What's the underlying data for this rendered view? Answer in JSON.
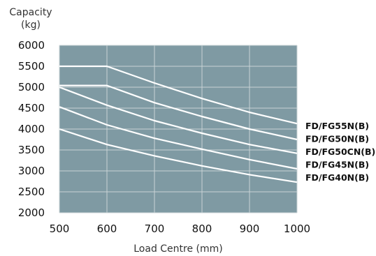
{
  "chart_data": {
    "type": "line",
    "ylabel_line1": "Capacity",
    "ylabel_line2": "(kg)",
    "xlabel": "Load Centre (mm)",
    "xlim": [
      500,
      1000
    ],
    "ylim": [
      2000,
      6000
    ],
    "x_ticks": [
      "500",
      "600",
      "700",
      "800",
      "900",
      "1000"
    ],
    "y_ticks": [
      "2000",
      "2500",
      "3000",
      "3500",
      "4000",
      "4500",
      "5000",
      "5500",
      "6000"
    ],
    "grid": true,
    "colors": {
      "plot_bg": "#7f9aa3",
      "grid": "#c9d3d6",
      "line": "#ffffff"
    },
    "series": [
      {
        "name": "FD/FG55N(B)",
        "x": [
          500,
          600,
          700,
          800,
          900,
          1000
        ],
        "y": [
          5500,
          5500,
          5100,
          4730,
          4400,
          4130
        ]
      },
      {
        "name": "FD/FG50N(B)",
        "x": [
          500,
          600,
          700,
          800,
          900,
          1000
        ],
        "y": [
          5040,
          5040,
          4630,
          4300,
          4000,
          3750
        ]
      },
      {
        "name": "FD/FG50CN(B)",
        "x": [
          500,
          600,
          700,
          800,
          900,
          1000
        ],
        "y": [
          5000,
          4570,
          4200,
          3900,
          3630,
          3420
        ]
      },
      {
        "name": "FD/FG45N(B)",
        "x": [
          500,
          600,
          700,
          800,
          900,
          1000
        ],
        "y": [
          4530,
          4100,
          3780,
          3520,
          3270,
          3050
        ]
      },
      {
        "name": "FD/FG40N(B)",
        "x": [
          500,
          600,
          700,
          800,
          900,
          1000
        ],
        "y": [
          4000,
          3630,
          3360,
          3120,
          2910,
          2730
        ]
      }
    ]
  }
}
